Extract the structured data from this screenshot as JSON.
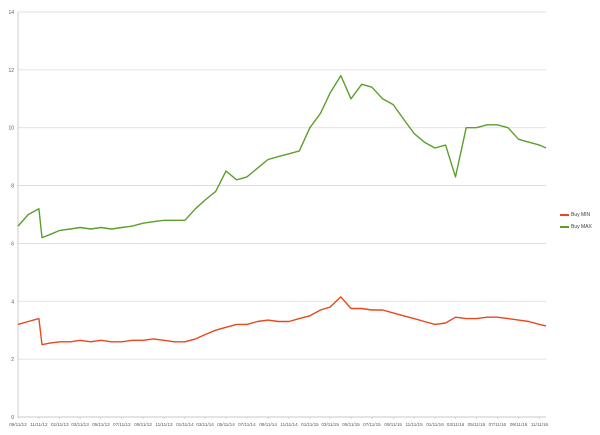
{
  "chart_data": {
    "type": "line",
    "title": "",
    "xlabel": "",
    "ylabel": "",
    "ylim": [
      0,
      14
    ],
    "yticks": [
      "0",
      "2",
      "4",
      "6",
      "8",
      "10",
      "12",
      "14"
    ],
    "xticks": [
      "09/11/12",
      "11/11/12",
      "01/11/13",
      "03/11/13",
      "05/11/13",
      "07/11/13",
      "09/11/13",
      "11/11/13",
      "01/11/14",
      "03/11/14",
      "05/11/14",
      "07/11/14",
      "09/11/14",
      "11/11/14",
      "01/11/15",
      "03/11/15",
      "05/11/15",
      "07/11/15",
      "09/11/15",
      "11/11/15",
      "01/11/16",
      "03/11/16",
      "05/11/16",
      "07/11/16",
      "09/11/16",
      "11/11/16"
    ],
    "grid": true,
    "legend_position": "right",
    "series": [
      {
        "name": "Buy MIN",
        "color": "#e8481c",
        "x": [
          "09/11/12",
          "10/11/12",
          "11/11/12",
          "11/20/12",
          "12/11/12",
          "01/11/13",
          "02/11/13",
          "03/11/13",
          "04/11/13",
          "05/11/13",
          "06/11/13",
          "07/11/13",
          "08/11/13",
          "09/11/13",
          "10/11/13",
          "11/11/13",
          "12/11/13",
          "01/11/14",
          "02/11/14",
          "03/11/14",
          "04/11/14",
          "05/11/14",
          "06/11/14",
          "07/11/14",
          "08/11/14",
          "09/11/14",
          "10/11/14",
          "11/11/14",
          "12/11/14",
          "01/11/15",
          "02/11/15",
          "03/11/15",
          "04/11/15",
          "05/11/15",
          "06/11/15",
          "07/11/15",
          "08/11/15",
          "09/11/15",
          "10/11/15",
          "11/11/15",
          "12/11/15",
          "01/11/16",
          "02/11/16",
          "03/11/16",
          "04/11/16",
          "05/11/16",
          "06/11/16",
          "07/11/16",
          "08/11/16",
          "09/11/16",
          "10/11/16",
          "11/11/16",
          "11/30/16"
        ],
        "values": [
          3.2,
          3.3,
          3.4,
          2.5,
          2.55,
          2.6,
          2.6,
          2.65,
          2.6,
          2.65,
          2.6,
          2.6,
          2.65,
          2.65,
          2.7,
          2.65,
          2.6,
          2.6,
          2.7,
          2.85,
          3.0,
          3.1,
          3.2,
          3.2,
          3.3,
          3.35,
          3.3,
          3.3,
          3.4,
          3.5,
          3.7,
          3.8,
          4.15,
          3.75,
          3.75,
          3.7,
          3.7,
          3.6,
          3.5,
          3.4,
          3.3,
          3.2,
          3.25,
          3.45,
          3.4,
          3.4,
          3.45,
          3.45,
          3.4,
          3.35,
          3.3,
          3.2,
          3.15
        ]
      },
      {
        "name": "Buy MAX",
        "color": "#5aa02c",
        "x": [
          "09/11/12",
          "10/11/12",
          "11/11/12",
          "11/20/12",
          "12/11/12",
          "01/11/13",
          "02/11/13",
          "03/11/13",
          "04/11/13",
          "05/11/13",
          "06/11/13",
          "07/11/13",
          "08/11/13",
          "09/11/13",
          "10/11/13",
          "11/11/13",
          "12/11/13",
          "01/11/14",
          "02/11/14",
          "03/11/14",
          "04/11/14",
          "05/11/14",
          "06/11/14",
          "07/11/14",
          "08/11/14",
          "09/11/14",
          "10/11/14",
          "11/11/14",
          "12/11/14",
          "01/11/15",
          "02/11/15",
          "03/11/15",
          "04/11/15",
          "05/11/15",
          "06/11/15",
          "07/11/15",
          "08/11/15",
          "09/11/15",
          "10/11/15",
          "11/11/15",
          "12/11/15",
          "01/11/16",
          "02/11/16",
          "03/11/16",
          "04/11/16",
          "05/11/16",
          "06/11/16",
          "07/11/16",
          "08/11/16",
          "09/11/16",
          "10/11/16",
          "11/11/16",
          "11/30/16"
        ],
        "values": [
          6.6,
          7.0,
          7.2,
          6.2,
          6.3,
          6.45,
          6.5,
          6.55,
          6.5,
          6.55,
          6.5,
          6.55,
          6.6,
          6.7,
          6.75,
          6.8,
          6.8,
          6.8,
          7.2,
          7.5,
          7.8,
          8.5,
          8.2,
          8.3,
          8.6,
          8.9,
          9.0,
          9.1,
          9.2,
          10.0,
          10.5,
          11.2,
          11.8,
          11.0,
          11.5,
          11.4,
          11.0,
          10.8,
          10.3,
          9.8,
          9.5,
          9.3,
          9.4,
          8.3,
          10.0,
          10.0,
          10.1,
          10.1,
          10.0,
          9.6,
          9.5,
          9.4,
          9.3
        ]
      }
    ]
  }
}
